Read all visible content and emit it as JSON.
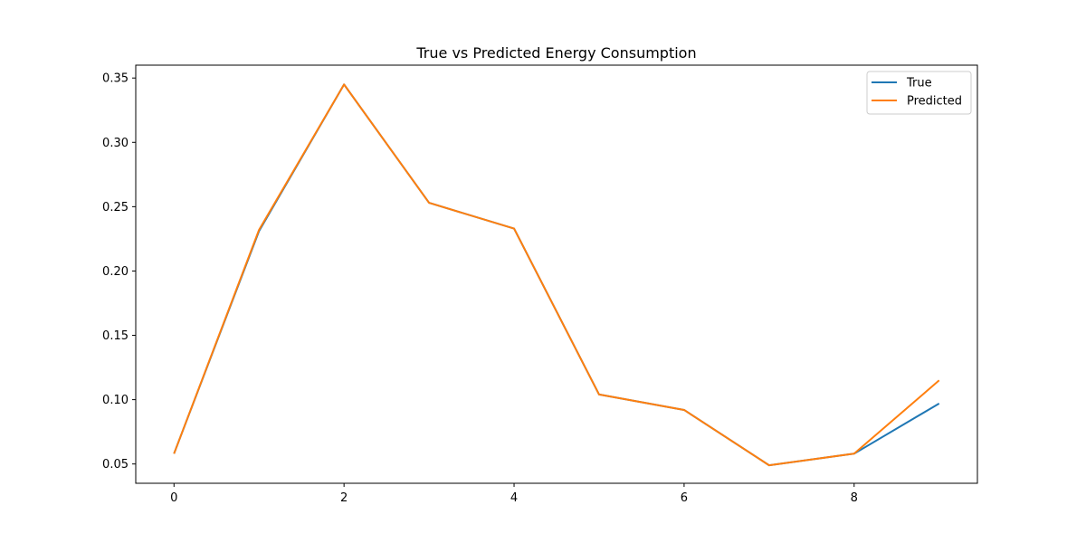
{
  "chart_data": {
    "type": "line",
    "title": "True vs Predicted Energy Consumption",
    "xlabel": "",
    "ylabel": "",
    "x": [
      0,
      1,
      2,
      3,
      4,
      5,
      6,
      7,
      8,
      9
    ],
    "xlim": [
      -0.45,
      9.45
    ],
    "ylim": [
      0.035,
      0.36
    ],
    "xticks": [
      0,
      2,
      4,
      6,
      8
    ],
    "yticks": [
      0.05,
      0.1,
      0.15,
      0.2,
      0.25,
      0.3,
      0.35
    ],
    "ytick_labels": [
      "0.05",
      "0.10",
      "0.15",
      "0.20",
      "0.25",
      "0.30",
      "0.35"
    ],
    "grid": false,
    "legend_position": "top-right",
    "series": [
      {
        "name": "True",
        "color": "#1f77b4",
        "values": [
          0.058,
          0.231,
          0.345,
          0.253,
          0.233,
          0.104,
          0.092,
          0.049,
          0.058,
          0.097
        ]
      },
      {
        "name": "Predicted",
        "color": "#ff7f0e",
        "values": [
          0.058,
          0.232,
          0.345,
          0.253,
          0.233,
          0.104,
          0.092,
          0.049,
          0.058,
          0.115
        ]
      }
    ]
  }
}
